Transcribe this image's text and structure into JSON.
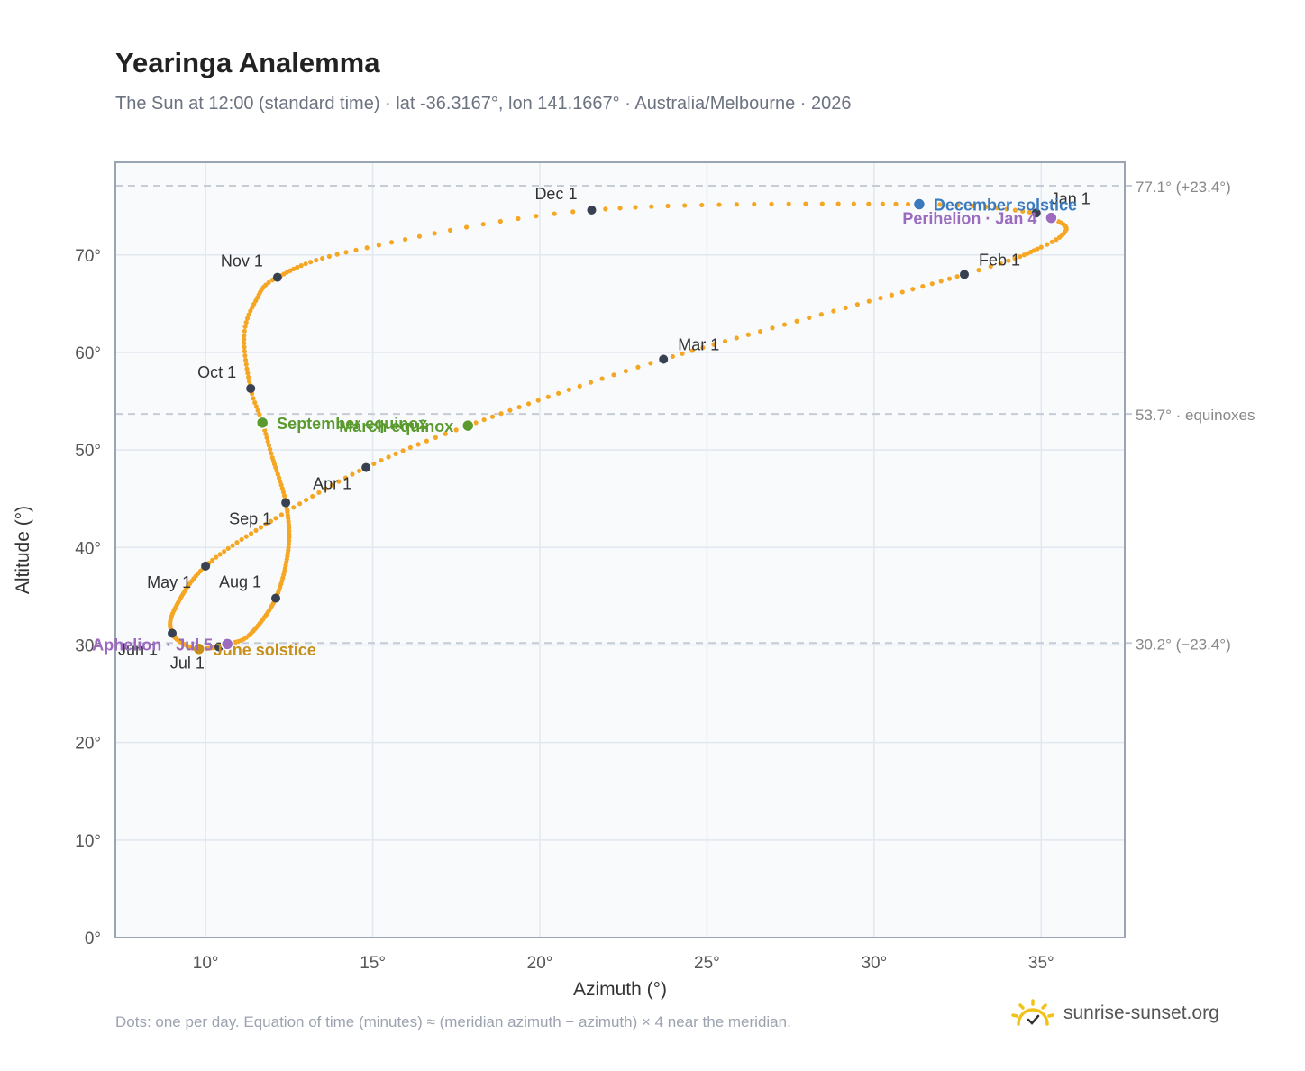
{
  "header": {
    "title": "Yearinga Analemma",
    "subtitle": "The Sun at 12:00 (standard time) · lat -36.3167°, lon 141.1667° · Australia/Melbourne · 2026"
  },
  "footer": {
    "note": "Dots: one per day. Equation of time (minutes) ≈ (meridian azimuth − azimuth) × 4 near the meridian.",
    "brand": "sunrise-sunset.org"
  },
  "colors": {
    "curve": "#f5a623",
    "month_dot": "#374151",
    "equinox": "#5a9a2e",
    "june_solstice": "#c8901a",
    "december_solstice": "#3a7abd",
    "apsis": "#9b6bbf",
    "guide": "#c5ccd6",
    "plot_bg": "#f8fafc",
    "grid": "#e2e8f0"
  },
  "chart_data": {
    "type": "scatter",
    "xlabel": "Azimuth (°)",
    "ylabel": "Altitude (°)",
    "xlim": [
      7.3,
      37.5
    ],
    "ylim": [
      0,
      79.5
    ],
    "x_ticks": [
      "10°",
      "15°",
      "20°",
      "25°",
      "30°",
      "35°"
    ],
    "x_tick_values": [
      10,
      15,
      20,
      25,
      30,
      35
    ],
    "y_ticks": [
      "0°",
      "10°",
      "20°",
      "30°",
      "40°",
      "50°",
      "60°",
      "70°"
    ],
    "y_tick_values": [
      0,
      10,
      20,
      30,
      40,
      50,
      60,
      70
    ],
    "grid": true,
    "guides": [
      {
        "y": 77.1,
        "label": "77.1° (+23.4°)"
      },
      {
        "y": 53.7,
        "label": "53.7° · equinoxes"
      },
      {
        "y": 30.2,
        "label": "30.2° (−23.4°)"
      }
    ],
    "path_anchors": [
      {
        "day": 1,
        "x": 34.85,
        "y": 74.3
      },
      {
        "day": 4,
        "x": 35.3,
        "y": 73.8
      },
      {
        "day": 12,
        "x": 35.75,
        "y": 72.6
      },
      {
        "day": 20,
        "x": 35.0,
        "y": 70.8
      },
      {
        "day": 32,
        "x": 32.7,
        "y": 68.0
      },
      {
        "day": 60,
        "x": 23.7,
        "y": 59.3
      },
      {
        "day": 79,
        "x": 17.85,
        "y": 52.5
      },
      {
        "day": 91,
        "x": 14.8,
        "y": 48.2
      },
      {
        "day": 105,
        "x": 12.1,
        "y": 43.0
      },
      {
        "day": 121,
        "x": 10.0,
        "y": 38.1
      },
      {
        "day": 140,
        "x": 9.05,
        "y": 33.5
      },
      {
        "day": 152,
        "x": 9.0,
        "y": 31.2
      },
      {
        "day": 163,
        "x": 9.45,
        "y": 29.9
      },
      {
        "day": 172,
        "x": 9.8,
        "y": 29.6
      },
      {
        "day": 182,
        "x": 10.4,
        "y": 29.8
      },
      {
        "day": 186,
        "x": 10.65,
        "y": 30.1
      },
      {
        "day": 195,
        "x": 11.3,
        "y": 31.0
      },
      {
        "day": 213,
        "x": 12.1,
        "y": 34.8
      },
      {
        "day": 230,
        "x": 12.48,
        "y": 40.0
      },
      {
        "day": 244,
        "x": 12.4,
        "y": 44.6
      },
      {
        "day": 257,
        "x": 12.0,
        "y": 49.2
      },
      {
        "day": 266,
        "x": 11.7,
        "y": 52.8
      },
      {
        "day": 274,
        "x": 11.35,
        "y": 56.3
      },
      {
        "day": 287,
        "x": 11.15,
        "y": 61.7
      },
      {
        "day": 296,
        "x": 11.5,
        "y": 65.3
      },
      {
        "day": 305,
        "x": 12.15,
        "y": 67.7
      },
      {
        "day": 320,
        "x": 14.5,
        "y": 70.5
      },
      {
        "day": 335,
        "x": 21.55,
        "y": 74.6
      },
      {
        "day": 356,
        "x": 31.35,
        "y": 75.2
      },
      {
        "day": 366,
        "x": 34.85,
        "y": 74.3
      }
    ],
    "month_points": [
      {
        "label": "Jan 1",
        "x": 34.85,
        "y": 74.3,
        "label_pos": "above-right"
      },
      {
        "label": "Feb 1",
        "x": 32.7,
        "y": 68.0,
        "label_pos": "above-right"
      },
      {
        "label": "Mar 1",
        "x": 23.7,
        "y": 59.3,
        "label_pos": "above-right"
      },
      {
        "label": "Apr 1",
        "x": 14.8,
        "y": 48.2,
        "label_pos": "below-left"
      },
      {
        "label": "May 1",
        "x": 10.0,
        "y": 38.1,
        "label_pos": "below-left"
      },
      {
        "label": "Jun 1",
        "x": 9.0,
        "y": 31.2,
        "label_pos": "below-left"
      },
      {
        "label": "Jul 1",
        "x": 10.4,
        "y": 29.8,
        "label_pos": "below-left"
      },
      {
        "label": "Aug 1",
        "x": 12.1,
        "y": 34.8,
        "label_pos": "above-left"
      },
      {
        "label": "Sep 1",
        "x": 12.4,
        "y": 44.6,
        "label_pos": "below-left"
      },
      {
        "label": "Oct 1",
        "x": 11.35,
        "y": 56.3,
        "label_pos": "above-left"
      },
      {
        "label": "Nov 1",
        "x": 12.15,
        "y": 67.7,
        "label_pos": "above-left"
      },
      {
        "label": "Dec 1",
        "x": 21.55,
        "y": 74.6,
        "label_pos": "above-left"
      }
    ],
    "events": [
      {
        "label": "March equinox",
        "x": 17.85,
        "y": 52.5,
        "color_key": "equinox",
        "label_side": "left"
      },
      {
        "label": "September equinox",
        "x": 11.7,
        "y": 52.8,
        "color_key": "equinox",
        "label_side": "right"
      },
      {
        "label": "June solstice",
        "x": 9.8,
        "y": 29.6,
        "color_key": "june_solstice",
        "label_side": "right"
      },
      {
        "label": "December solstice",
        "x": 31.35,
        "y": 75.2,
        "color_key": "december_solstice",
        "label_side": "right"
      },
      {
        "label": "Perihelion · Jan 4",
        "x": 35.3,
        "y": 73.8,
        "color_key": "apsis",
        "label_side": "left"
      },
      {
        "label": "Aphelion · Jul 5",
        "x": 10.65,
        "y": 30.1,
        "color_key": "apsis",
        "label_side": "left"
      }
    ]
  }
}
